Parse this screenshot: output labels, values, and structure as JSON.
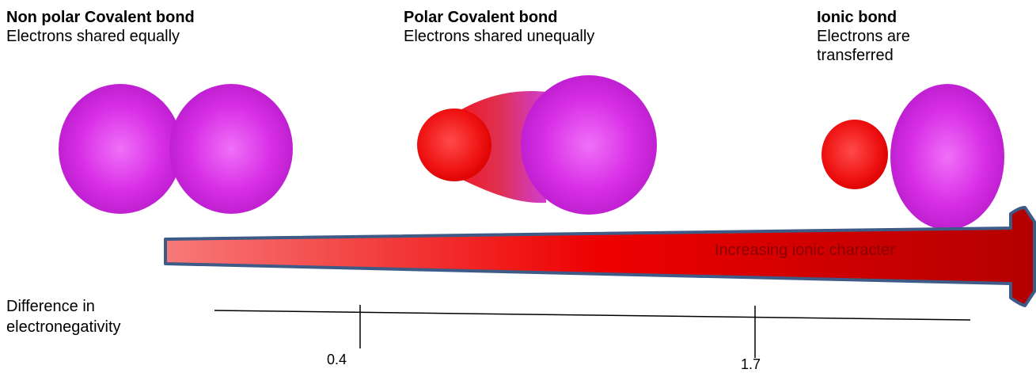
{
  "bond_types": [
    {
      "title": "Non polar Covalent bond",
      "description": "Electrons shared equally"
    },
    {
      "title": "Polar Covalent bond",
      "description": "Electrons shared unequally"
    },
    {
      "title": "Ionic bond",
      "description": "Electrons are transferred"
    }
  ],
  "arrow": {
    "label": "Increasing ionic character",
    "gradient_start": "#f77a7a",
    "gradient_mid": "#ee0000",
    "gradient_end": "#b30000",
    "outline": "#3e5a86"
  },
  "axis": {
    "label": "Difference in electronegativity",
    "ticks": [
      "0.4",
      "1.7"
    ]
  },
  "colors": {
    "purple": "#cc22dd",
    "red": "#ee1111"
  }
}
